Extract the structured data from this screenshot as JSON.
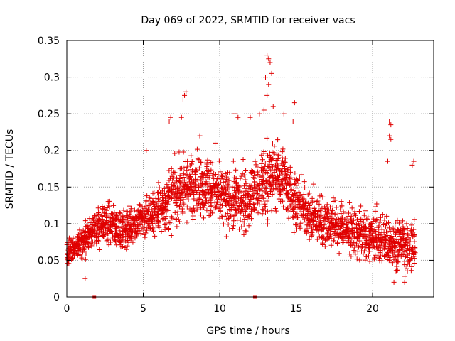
{
  "chart_data": {
    "type": "scatter",
    "title": "Day 069 of 2022, SRMTID for receiver vacs",
    "xlabel": "GPS time / hours",
    "ylabel": "SRMTID / TECUs",
    "xlim": [
      0,
      24
    ],
    "ylim": [
      0,
      0.35
    ],
    "grid": true,
    "x_ticks": [
      0,
      5,
      10,
      15,
      20
    ],
    "y_ticks": [
      0,
      0.05,
      0.1,
      0.15,
      0.2,
      0.25,
      0.3,
      0.35
    ],
    "x_tick_labels": [
      "0",
      "5",
      "10",
      "15",
      "20"
    ],
    "y_tick_labels": [
      "0",
      "0.05",
      "0.1",
      "0.15",
      "0.2",
      "0.25",
      "0.3",
      "0.35"
    ],
    "marker": "+",
    "color": "#e00000",
    "series": [
      {
        "name": "SRMTID",
        "x": [
          0.0,
          0.2,
          0.4,
          0.6,
          0.8,
          1.0,
          1.2,
          1.4,
          1.6,
          1.8,
          2.0,
          2.2,
          2.4,
          2.6,
          2.8,
          3.0,
          3.2,
          3.4,
          3.6,
          3.8,
          4.0,
          4.2,
          4.4,
          4.6,
          4.8,
          5.0,
          5.2,
          5.4,
          5.6,
          5.8,
          6.0,
          6.2,
          6.4,
          6.6,
          6.8,
          7.0,
          7.2,
          7.4,
          7.6,
          7.8,
          8.0,
          8.2,
          8.4,
          8.6,
          8.8,
          9.0,
          9.2,
          9.4,
          9.6,
          9.8,
          10.0,
          10.2,
          10.4,
          10.6,
          10.8,
          11.0,
          11.2,
          11.4,
          11.6,
          11.8,
          12.0,
          12.2,
          12.4,
          12.6,
          12.8,
          13.0,
          13.2,
          13.4,
          13.6,
          13.8,
          14.0,
          14.2,
          14.4,
          14.6,
          14.8,
          15.0,
          15.2,
          15.4,
          15.6,
          15.8,
          16.0,
          16.2,
          16.4,
          16.6,
          16.8,
          17.0,
          17.2,
          17.4,
          17.6,
          17.8,
          18.0,
          18.2,
          18.4,
          18.6,
          18.8,
          19.0,
          19.2,
          19.4,
          19.6,
          19.8,
          20.0,
          20.2,
          20.4,
          20.6,
          20.8,
          21.0,
          21.2,
          21.4,
          21.6,
          21.8,
          22.0,
          22.2,
          22.4,
          22.6,
          22.8
        ],
        "mean": [
          0.06,
          0.062,
          0.064,
          0.066,
          0.07,
          0.075,
          0.08,
          0.085,
          0.09,
          0.093,
          0.095,
          0.097,
          0.098,
          0.1,
          0.1,
          0.098,
          0.095,
          0.093,
          0.092,
          0.093,
          0.095,
          0.098,
          0.1,
          0.103,
          0.106,
          0.108,
          0.11,
          0.112,
          0.114,
          0.117,
          0.12,
          0.123,
          0.126,
          0.13,
          0.134,
          0.138,
          0.142,
          0.145,
          0.148,
          0.15,
          0.152,
          0.153,
          0.154,
          0.155,
          0.155,
          0.153,
          0.15,
          0.147,
          0.143,
          0.14,
          0.137,
          0.135,
          0.133,
          0.132,
          0.131,
          0.13,
          0.131,
          0.132,
          0.133,
          0.135,
          0.138,
          0.142,
          0.146,
          0.15,
          0.155,
          0.16,
          0.163,
          0.165,
          0.166,
          0.166,
          0.164,
          0.16,
          0.155,
          0.148,
          0.14,
          0.132,
          0.125,
          0.12,
          0.116,
          0.113,
          0.11,
          0.108,
          0.106,
          0.105,
          0.104,
          0.103,
          0.102,
          0.1,
          0.098,
          0.096,
          0.094,
          0.092,
          0.09,
          0.088,
          0.087,
          0.086,
          0.085,
          0.084,
          0.083,
          0.082,
          0.081,
          0.08,
          0.079,
          0.078,
          0.077,
          0.076,
          0.075,
          0.074,
          0.073,
          0.072,
          0.071,
          0.07,
          0.07,
          0.07,
          0.07
        ],
        "spread": [
          0.025,
          0.025,
          0.025,
          0.025,
          0.028,
          0.03,
          0.03,
          0.032,
          0.035,
          0.035,
          0.035,
          0.035,
          0.035,
          0.035,
          0.035,
          0.035,
          0.035,
          0.035,
          0.035,
          0.035,
          0.035,
          0.035,
          0.035,
          0.035,
          0.035,
          0.037,
          0.04,
          0.042,
          0.045,
          0.045,
          0.045,
          0.047,
          0.05,
          0.055,
          0.055,
          0.055,
          0.055,
          0.055,
          0.055,
          0.055,
          0.055,
          0.055,
          0.055,
          0.055,
          0.055,
          0.055,
          0.055,
          0.055,
          0.055,
          0.055,
          0.055,
          0.055,
          0.055,
          0.055,
          0.055,
          0.055,
          0.055,
          0.055,
          0.055,
          0.055,
          0.055,
          0.055,
          0.06,
          0.065,
          0.07,
          0.07,
          0.07,
          0.07,
          0.065,
          0.06,
          0.06,
          0.055,
          0.055,
          0.055,
          0.055,
          0.05,
          0.05,
          0.045,
          0.045,
          0.045,
          0.045,
          0.045,
          0.045,
          0.045,
          0.045,
          0.045,
          0.045,
          0.045,
          0.045,
          0.045,
          0.045,
          0.045,
          0.045,
          0.045,
          0.045,
          0.045,
          0.045,
          0.045,
          0.045,
          0.045,
          0.045,
          0.045,
          0.045,
          0.045,
          0.045,
          0.045,
          0.045,
          0.045,
          0.045,
          0.045,
          0.045,
          0.045,
          0.045,
          0.045,
          0.045
        ]
      }
    ],
    "outliers": [
      {
        "x": 6.8,
        "y": 0.245
      },
      {
        "x": 6.7,
        "y": 0.24
      },
      {
        "x": 7.6,
        "y": 0.27
      },
      {
        "x": 7.7,
        "y": 0.275
      },
      {
        "x": 7.8,
        "y": 0.28
      },
      {
        "x": 7.5,
        "y": 0.245
      },
      {
        "x": 11.0,
        "y": 0.25
      },
      {
        "x": 11.2,
        "y": 0.245
      },
      {
        "x": 12.0,
        "y": 0.245
      },
      {
        "x": 12.6,
        "y": 0.25
      },
      {
        "x": 13.1,
        "y": 0.33
      },
      {
        "x": 13.2,
        "y": 0.325
      },
      {
        "x": 13.3,
        "y": 0.32
      },
      {
        "x": 13.0,
        "y": 0.3
      },
      {
        "x": 13.2,
        "y": 0.29
      },
      {
        "x": 13.1,
        "y": 0.275
      },
      {
        "x": 13.4,
        "y": 0.305
      },
      {
        "x": 12.9,
        "y": 0.255
      },
      {
        "x": 13.5,
        "y": 0.26
      },
      {
        "x": 14.2,
        "y": 0.25
      },
      {
        "x": 14.9,
        "y": 0.265
      },
      {
        "x": 14.8,
        "y": 0.24
      },
      {
        "x": 21.1,
        "y": 0.24
      },
      {
        "x": 21.2,
        "y": 0.235
      },
      {
        "x": 21.1,
        "y": 0.22
      },
      {
        "x": 21.2,
        "y": 0.215
      },
      {
        "x": 21.0,
        "y": 0.185
      },
      {
        "x": 22.6,
        "y": 0.18
      },
      {
        "x": 22.7,
        "y": 0.185
      },
      {
        "x": 1.2,
        "y": 0.025
      },
      {
        "x": 21.4,
        "y": 0.02
      },
      {
        "x": 22.1,
        "y": 0.02
      },
      {
        "x": 5.2,
        "y": 0.2
      },
      {
        "x": 9.7,
        "y": 0.21
      },
      {
        "x": 8.7,
        "y": 0.22
      }
    ],
    "axis_markers": [
      {
        "x": 1.8,
        "y": 0
      },
      {
        "x": 12.3,
        "y": 0
      }
    ]
  }
}
